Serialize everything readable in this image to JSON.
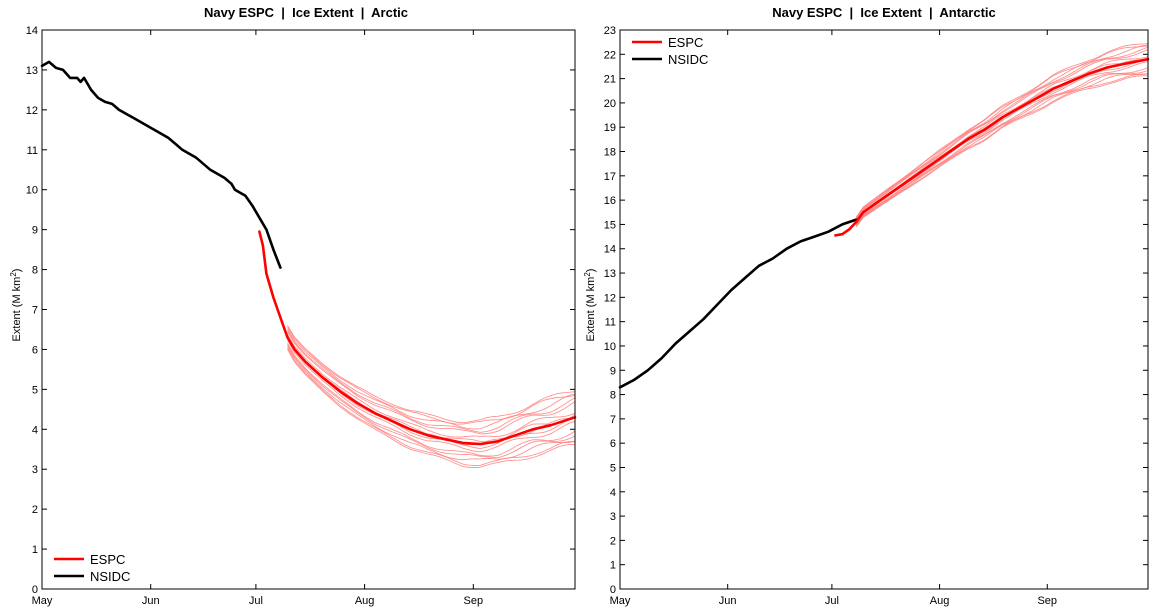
{
  "chart_data": [
    {
      "type": "line",
      "title": "Navy ESPC  |  Ice Extent  |  Arctic",
      "ylabel": "Extent (M km",
      "ylabel_sup": "2",
      "ylabel_end": ")",
      "xlabel": "",
      "xlim": [
        "May 1",
        "Sep 30"
      ],
      "ylim": [
        0,
        14
      ],
      "yticks": [
        0,
        1,
        2,
        3,
        4,
        5,
        6,
        7,
        8,
        9,
        10,
        11,
        12,
        13,
        14
      ],
      "xticks": [
        {
          "label": "May",
          "day": 0
        },
        {
          "label": "Jun",
          "day": 31
        },
        {
          "label": "Jul",
          "day": 61
        },
        {
          "label": "Aug",
          "day": 92
        },
        {
          "label": "Sep",
          "day": 123
        }
      ],
      "grid": false,
      "legend_position": "bottom-left",
      "legend": [
        {
          "name": "ESPC",
          "color": "#ff0000"
        },
        {
          "name": "NSIDC",
          "color": "#000000"
        }
      ],
      "series": [
        {
          "name": "NSIDC",
          "color": "#000000",
          "x": [
            0,
            2,
            4,
            6,
            8,
            10,
            11,
            12,
            14,
            16,
            18,
            20,
            22,
            24,
            26,
            28,
            30,
            32,
            34,
            36,
            38,
            40,
            42,
            44,
            46,
            48,
            50,
            52,
            54,
            55,
            56,
            58,
            60,
            62,
            64,
            66,
            68
          ],
          "y": [
            13.1,
            13.2,
            13.05,
            13.0,
            12.8,
            12.8,
            12.7,
            12.8,
            12.5,
            12.3,
            12.2,
            12.15,
            12.0,
            11.9,
            11.8,
            11.7,
            11.6,
            11.5,
            11.4,
            11.3,
            11.15,
            11.0,
            10.9,
            10.8,
            10.65,
            10.5,
            10.4,
            10.3,
            10.15,
            10.0,
            9.95,
            9.85,
            9.6,
            9.3,
            9.0,
            8.5,
            8.05
          ]
        },
        {
          "name": "ESPC",
          "color": "#ff0000",
          "x": [
            62,
            63,
            64,
            66,
            68,
            70,
            72,
            75,
            80,
            85,
            90,
            95,
            100,
            105,
            110,
            115,
            120,
            125,
            130,
            135,
            140,
            145,
            152
          ],
          "y": [
            8.95,
            8.6,
            7.9,
            7.3,
            6.8,
            6.3,
            6.0,
            5.7,
            5.3,
            4.95,
            4.65,
            4.4,
            4.2,
            4.0,
            3.85,
            3.75,
            3.66,
            3.63,
            3.7,
            3.85,
            4.0,
            4.1,
            4.3
          ]
        }
      ],
      "ensemble": {
        "color": "#ff8080",
        "base_series": "ESPC",
        "start_day": 70,
        "spread_early": 0.15,
        "spread_late": 0.35,
        "members": [
          -1.0,
          -0.75,
          -0.5,
          -0.25,
          0,
          0.25,
          0.5,
          0.75,
          1.0,
          -0.6,
          0.6,
          -0.9,
          0.9,
          0.1,
          -0.1
        ]
      }
    },
    {
      "type": "line",
      "title": "Navy ESPC  |  Ice Extent  |  Antarctic",
      "ylabel": "Extent (M km",
      "ylabel_sup": "2",
      "ylabel_end": ")",
      "xlabel": "",
      "xlim": [
        "May 1",
        "Sep 30"
      ],
      "ylim": [
        0,
        23
      ],
      "yticks": [
        0,
        1,
        2,
        3,
        4,
        5,
        6,
        7,
        8,
        9,
        10,
        11,
        12,
        13,
        14,
        15,
        16,
        17,
        18,
        19,
        20,
        21,
        22,
        23
      ],
      "xticks": [
        {
          "label": "May",
          "day": 0
        },
        {
          "label": "Jun",
          "day": 31
        },
        {
          "label": "Jul",
          "day": 61
        },
        {
          "label": "Aug",
          "day": 92
        },
        {
          "label": "Sep",
          "day": 123
        }
      ],
      "grid": false,
      "legend_position": "top-left",
      "legend": [
        {
          "name": "ESPC",
          "color": "#ff0000"
        },
        {
          "name": "NSIDC",
          "color": "#000000"
        }
      ],
      "series": [
        {
          "name": "NSIDC",
          "color": "#000000",
          "x": [
            0,
            4,
            8,
            12,
            16,
            20,
            24,
            28,
            32,
            36,
            40,
            44,
            48,
            52,
            56,
            60,
            64,
            68
          ],
          "y": [
            8.3,
            8.6,
            9.0,
            9.5,
            10.1,
            10.6,
            11.1,
            11.7,
            12.3,
            12.8,
            13.3,
            13.6,
            14.0,
            14.3,
            14.5,
            14.7,
            15.0,
            15.2
          ]
        },
        {
          "name": "ESPC",
          "color": "#ff0000",
          "x": [
            62,
            64,
            66,
            68,
            70,
            75,
            80,
            85,
            90,
            95,
            100,
            105,
            110,
            115,
            120,
            125,
            130,
            135,
            140,
            145,
            152
          ],
          "y": [
            14.55,
            14.6,
            14.8,
            15.1,
            15.5,
            16.0,
            16.5,
            17.0,
            17.5,
            18.0,
            18.5,
            18.9,
            19.4,
            19.8,
            20.2,
            20.6,
            20.9,
            21.2,
            21.45,
            21.6,
            21.8
          ]
        }
      ],
      "ensemble": {
        "color": "#ff8080",
        "base_series": "ESPC",
        "start_day": 68,
        "spread_early": 0.1,
        "spread_late": 0.35,
        "members": [
          -1.0,
          -0.75,
          -0.5,
          -0.25,
          0,
          0.25,
          0.5,
          0.75,
          1.0,
          -0.6,
          0.6,
          -0.9,
          0.9,
          0.1,
          -0.1
        ]
      }
    }
  ]
}
